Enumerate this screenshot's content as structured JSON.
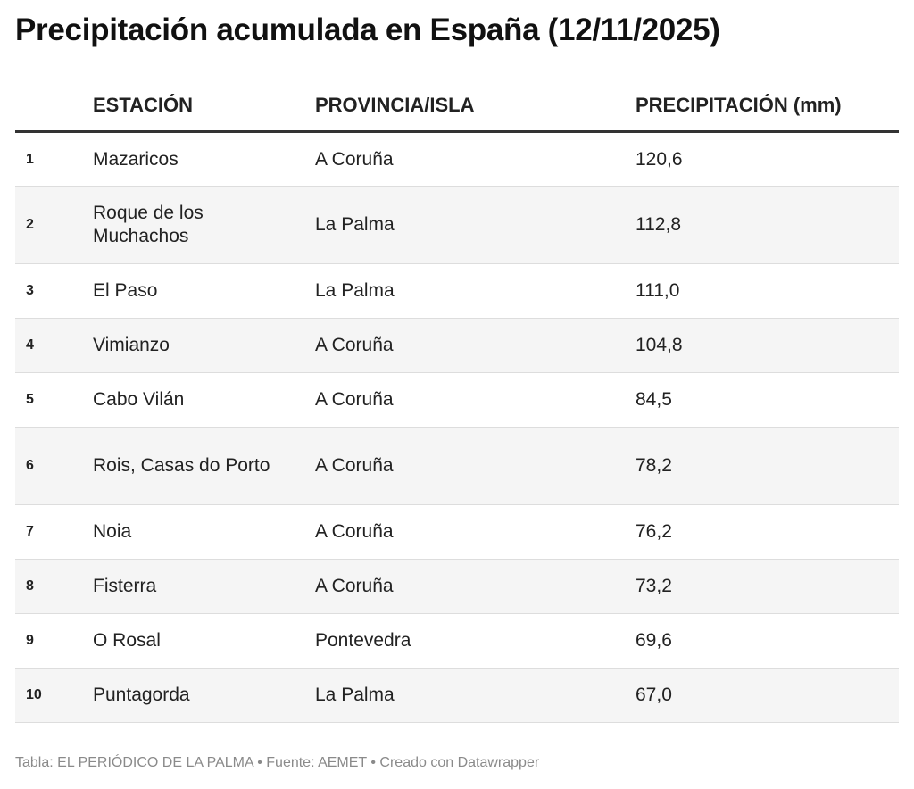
{
  "chart_data": {
    "type": "table",
    "title": "Precipitación acumulada en España (12/11/2025)",
    "columns": [
      "",
      "ESTACIÓN",
      "PROVINCIA/ISLA",
      "PRECIPITACIÓN (mm)"
    ],
    "rows": [
      {
        "rank": "1",
        "station": "Mazaricos",
        "province": "A Coruña",
        "value": "120,6"
      },
      {
        "rank": "2",
        "station": "Roque de los Muchachos",
        "province": "La Palma",
        "value": "112,8"
      },
      {
        "rank": "3",
        "station": "El Paso",
        "province": "La Palma",
        "value": "111,0"
      },
      {
        "rank": "4",
        "station": "Vimianzo",
        "province": "A Coruña",
        "value": "104,8"
      },
      {
        "rank": "5",
        "station": "Cabo Vilán",
        "province": "A Coruña",
        "value": "84,5"
      },
      {
        "rank": "6",
        "station": "Rois, Casas do Porto",
        "province": "A Coruña",
        "value": "78,2"
      },
      {
        "rank": "7",
        "station": "Noia",
        "province": "A Coruña",
        "value": "76,2"
      },
      {
        "rank": "8",
        "station": "Fisterra",
        "province": "A Coruña",
        "value": "73,2"
      },
      {
        "rank": "9",
        "station": "O Rosal",
        "province": "Pontevedra",
        "value": "69,6"
      },
      {
        "rank": "10",
        "station": "Puntagorda",
        "province": "La Palma",
        "value": "67,0"
      }
    ],
    "footer": "Tabla: EL PERIÓDICO DE LA PALMA • Fuente: AEMET • Creado con Datawrapper"
  }
}
